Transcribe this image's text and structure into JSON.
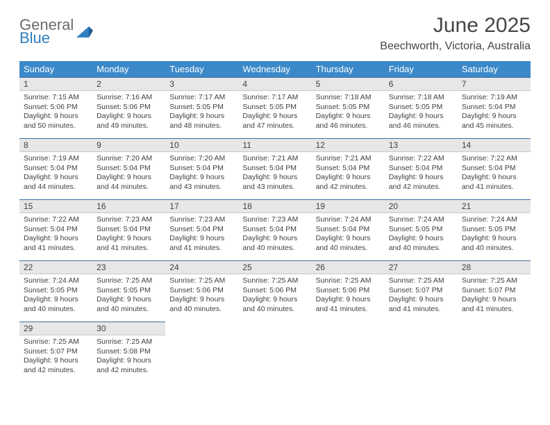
{
  "logo": {
    "word1": "General",
    "word2": "Blue"
  },
  "title": "June 2025",
  "location": "Beechworth, Victoria, Australia",
  "colors": {
    "header_bg": "#3b89c9",
    "daynum_bg": "#e7e7e7",
    "daynum_border_top": "#3b6fa0",
    "text": "#3f3f3f",
    "title_text": "#454545",
    "logo_gray": "#6b6b6b",
    "logo_blue": "#2f7fc1"
  },
  "dow": [
    "Sunday",
    "Monday",
    "Tuesday",
    "Wednesday",
    "Thursday",
    "Friday",
    "Saturday"
  ],
  "first_dow_index": 0,
  "days": [
    {
      "n": 1,
      "sr": "7:15 AM",
      "ss": "5:06 PM",
      "dl": "9 hours and 50 minutes."
    },
    {
      "n": 2,
      "sr": "7:16 AM",
      "ss": "5:06 PM",
      "dl": "9 hours and 49 minutes."
    },
    {
      "n": 3,
      "sr": "7:17 AM",
      "ss": "5:05 PM",
      "dl": "9 hours and 48 minutes."
    },
    {
      "n": 4,
      "sr": "7:17 AM",
      "ss": "5:05 PM",
      "dl": "9 hours and 47 minutes."
    },
    {
      "n": 5,
      "sr": "7:18 AM",
      "ss": "5:05 PM",
      "dl": "9 hours and 46 minutes."
    },
    {
      "n": 6,
      "sr": "7:18 AM",
      "ss": "5:05 PM",
      "dl": "9 hours and 46 minutes."
    },
    {
      "n": 7,
      "sr": "7:19 AM",
      "ss": "5:04 PM",
      "dl": "9 hours and 45 minutes."
    },
    {
      "n": 8,
      "sr": "7:19 AM",
      "ss": "5:04 PM",
      "dl": "9 hours and 44 minutes."
    },
    {
      "n": 9,
      "sr": "7:20 AM",
      "ss": "5:04 PM",
      "dl": "9 hours and 44 minutes."
    },
    {
      "n": 10,
      "sr": "7:20 AM",
      "ss": "5:04 PM",
      "dl": "9 hours and 43 minutes."
    },
    {
      "n": 11,
      "sr": "7:21 AM",
      "ss": "5:04 PM",
      "dl": "9 hours and 43 minutes."
    },
    {
      "n": 12,
      "sr": "7:21 AM",
      "ss": "5:04 PM",
      "dl": "9 hours and 42 minutes."
    },
    {
      "n": 13,
      "sr": "7:22 AM",
      "ss": "5:04 PM",
      "dl": "9 hours and 42 minutes."
    },
    {
      "n": 14,
      "sr": "7:22 AM",
      "ss": "5:04 PM",
      "dl": "9 hours and 41 minutes."
    },
    {
      "n": 15,
      "sr": "7:22 AM",
      "ss": "5:04 PM",
      "dl": "9 hours and 41 minutes."
    },
    {
      "n": 16,
      "sr": "7:23 AM",
      "ss": "5:04 PM",
      "dl": "9 hours and 41 minutes."
    },
    {
      "n": 17,
      "sr": "7:23 AM",
      "ss": "5:04 PM",
      "dl": "9 hours and 41 minutes."
    },
    {
      "n": 18,
      "sr": "7:23 AM",
      "ss": "5:04 PM",
      "dl": "9 hours and 40 minutes."
    },
    {
      "n": 19,
      "sr": "7:24 AM",
      "ss": "5:04 PM",
      "dl": "9 hours and 40 minutes."
    },
    {
      "n": 20,
      "sr": "7:24 AM",
      "ss": "5:05 PM",
      "dl": "9 hours and 40 minutes."
    },
    {
      "n": 21,
      "sr": "7:24 AM",
      "ss": "5:05 PM",
      "dl": "9 hours and 40 minutes."
    },
    {
      "n": 22,
      "sr": "7:24 AM",
      "ss": "5:05 PM",
      "dl": "9 hours and 40 minutes."
    },
    {
      "n": 23,
      "sr": "7:25 AM",
      "ss": "5:05 PM",
      "dl": "9 hours and 40 minutes."
    },
    {
      "n": 24,
      "sr": "7:25 AM",
      "ss": "5:06 PM",
      "dl": "9 hours and 40 minutes."
    },
    {
      "n": 25,
      "sr": "7:25 AM",
      "ss": "5:06 PM",
      "dl": "9 hours and 40 minutes."
    },
    {
      "n": 26,
      "sr": "7:25 AM",
      "ss": "5:06 PM",
      "dl": "9 hours and 41 minutes."
    },
    {
      "n": 27,
      "sr": "7:25 AM",
      "ss": "5:07 PM",
      "dl": "9 hours and 41 minutes."
    },
    {
      "n": 28,
      "sr": "7:25 AM",
      "ss": "5:07 PM",
      "dl": "9 hours and 41 minutes."
    },
    {
      "n": 29,
      "sr": "7:25 AM",
      "ss": "5:07 PM",
      "dl": "9 hours and 42 minutes."
    },
    {
      "n": 30,
      "sr": "7:25 AM",
      "ss": "5:08 PM",
      "dl": "9 hours and 42 minutes."
    }
  ],
  "labels": {
    "sunrise": "Sunrise:",
    "sunset": "Sunset:",
    "daylight": "Daylight:"
  }
}
